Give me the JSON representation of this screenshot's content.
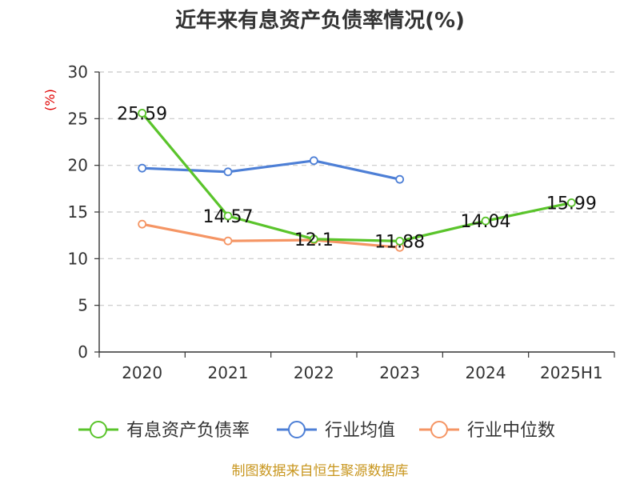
{
  "chart_data": {
    "type": "line",
    "title": "近年来有息资产负债率情况(%)",
    "ylabel": "(%)",
    "categories": [
      "2020",
      "2021",
      "2022",
      "2023",
      "2024",
      "2025H1"
    ],
    "ylim": [
      0,
      30
    ],
    "yticks": [
      0,
      5,
      10,
      15,
      20,
      25,
      30
    ],
    "grid": true,
    "legend_position": "bottom",
    "series": [
      {
        "name": "有息资产负债率",
        "color": "#5ac42b",
        "values": [
          25.59,
          14.57,
          12.1,
          11.88,
          14.04,
          15.99
        ],
        "labels": [
          "25.59",
          "14.57",
          "12.1",
          "11.88",
          "14.04",
          "15.99"
        ]
      },
      {
        "name": "行业均值",
        "color": "#4d7fd6",
        "values": [
          19.7,
          19.3,
          20.5,
          18.5,
          null,
          null
        ]
      },
      {
        "name": "行业中位数",
        "color": "#f59564",
        "values": [
          13.7,
          11.9,
          12.0,
          11.2,
          null,
          null
        ]
      }
    ]
  },
  "source": "制图数据来自恒生聚源数据库"
}
